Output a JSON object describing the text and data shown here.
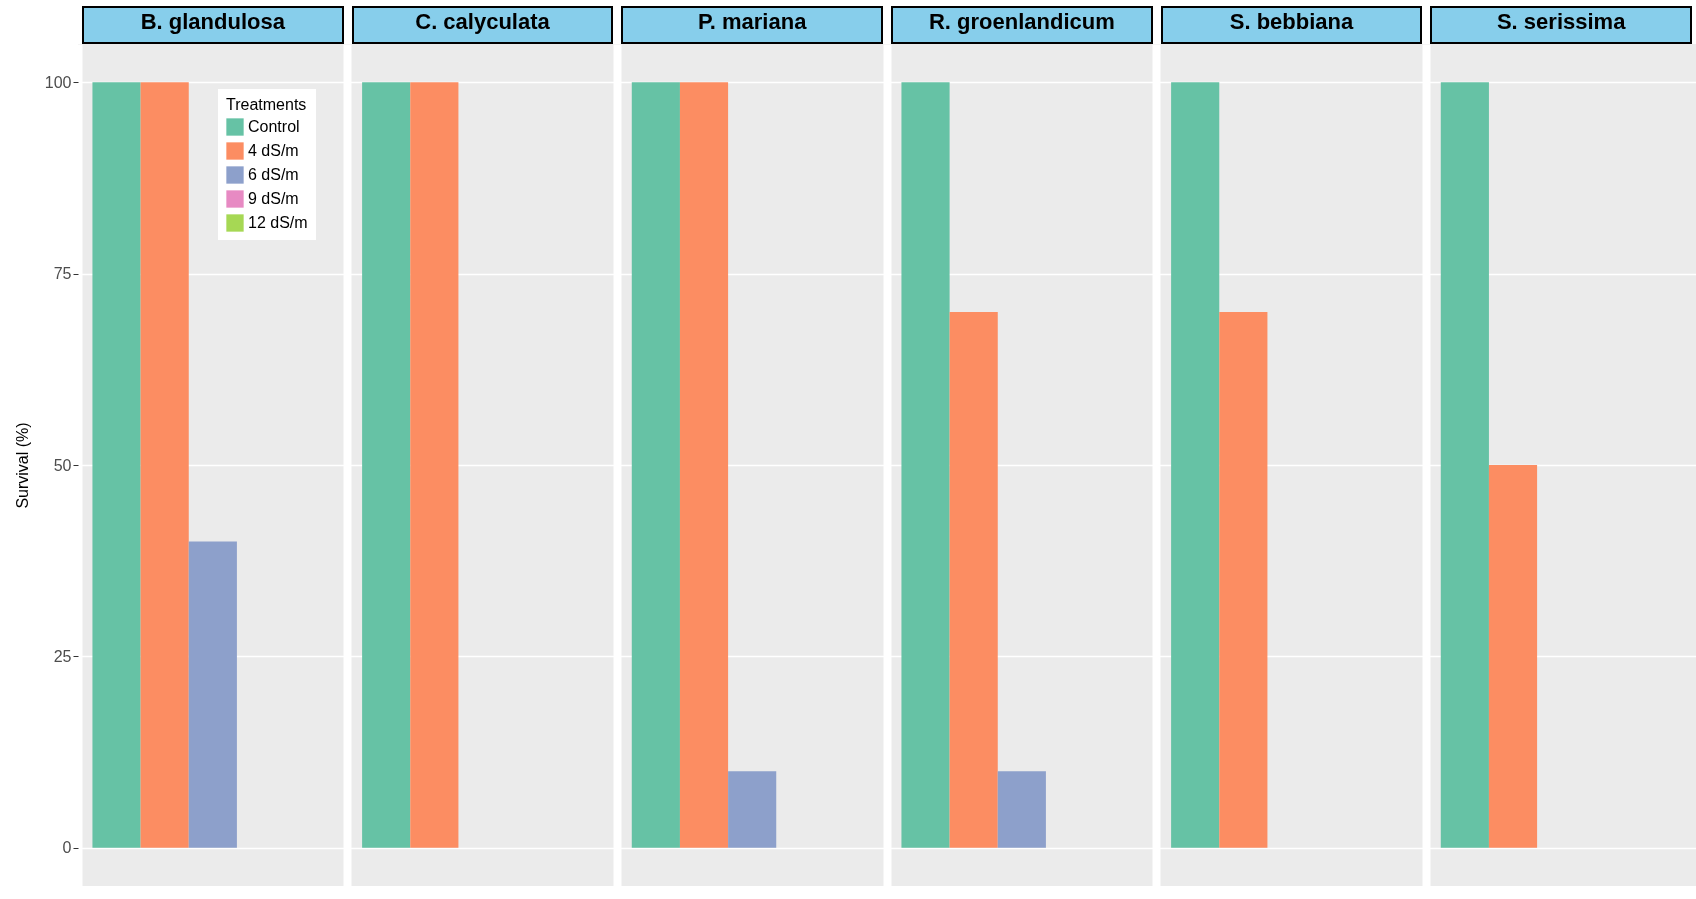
{
  "chart_data": {
    "type": "bar",
    "ylabel": "Survival (%)",
    "legend_title": "Treatments",
    "legend": "top left",
    "grid": true,
    "categories": [
      "B. glandulosa",
      "C. calyculata",
      "P. mariana",
      "R. groenlandicum",
      "S. bebbiana",
      "S. serissima"
    ],
    "ylim": [
      -5,
      105
    ],
    "yticks": [
      0,
      25,
      50,
      75,
      100
    ],
    "series": [
      {
        "name": "Control",
        "color": "#66c2a5",
        "values": [
          100,
          100,
          100,
          100,
          100,
          100
        ]
      },
      {
        "name": "4 dS/m",
        "color": "#fc8d62",
        "values": [
          100,
          100,
          100,
          70,
          70,
          50
        ]
      },
      {
        "name": "6 dS/m",
        "color": "#8da0cb",
        "values": [
          40,
          0,
          10,
          10,
          0,
          0
        ]
      },
      {
        "name": "9 dS/m",
        "color": "#e78ac3",
        "values": [
          0,
          0,
          0,
          0,
          0,
          0
        ]
      },
      {
        "name": "12 dS/m",
        "color": "#a6d854",
        "values": [
          0,
          0,
          0,
          0,
          0,
          0
        ]
      }
    ]
  }
}
